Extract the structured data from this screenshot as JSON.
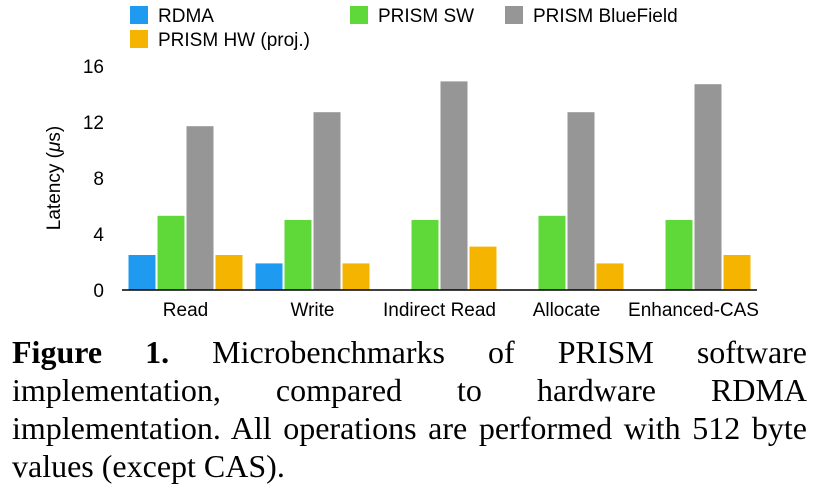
{
  "chart_data": {
    "type": "bar",
    "ylabel_prefix": "Latency (",
    "ylabel_mu": "μ",
    "ylabel_suffix": "s)",
    "categories": [
      "Read",
      "Write",
      "Indirect Read",
      "Allocate",
      "Enhanced-CAS"
    ],
    "ylim": [
      0,
      16
    ],
    "yticks": [
      "0",
      "4",
      "8",
      "12",
      "16"
    ],
    "grid": false,
    "legend_position": "top",
    "series": [
      {
        "name": "RDMA",
        "color": "#1E9BF0",
        "values": [
          2.5,
          1.9,
          null,
          null,
          null
        ]
      },
      {
        "name": "PRISM SW",
        "color": "#5FD93A",
        "values": [
          5.3,
          5.0,
          5.0,
          5.3,
          5.0
        ]
      },
      {
        "name": "PRISM BlueField",
        "color": "#969696",
        "values": [
          11.7,
          12.7,
          14.9,
          12.7,
          14.7
        ]
      },
      {
        "name": "PRISM HW (proj.)",
        "color": "#F5B400",
        "values": [
          2.5,
          1.9,
          3.1,
          1.9,
          2.5
        ]
      }
    ]
  },
  "caption": {
    "label": "Figure 1.",
    "text": " Microbenchmarks of PRISM software implementation, compared to hardware RDMA implementation. All operations are performed with 512 byte values (except CAS)."
  }
}
